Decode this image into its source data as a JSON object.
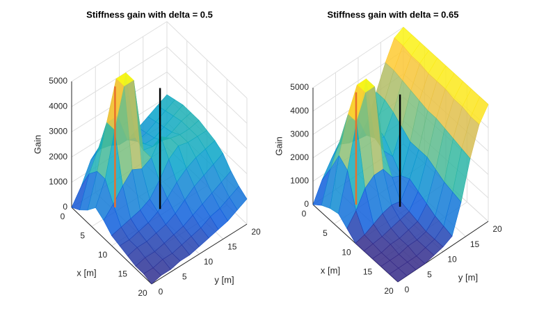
{
  "chart_data": [
    {
      "type": "surface",
      "title": "Stiffness gain with delta = 0.5",
      "xlabel": "x [m]",
      "ylabel": "y [m]",
      "zlabel": "Gain",
      "x": [
        0,
        2,
        4,
        6,
        8,
        10,
        12,
        14,
        16,
        18,
        20
      ],
      "y": [
        0,
        2,
        4,
        6,
        8,
        10,
        12,
        14,
        16,
        18,
        20
      ],
      "z": [
        [
          0,
          600,
          1400,
          1600,
          1500,
          1300,
          1300,
          1500,
          1700,
          1900,
          2100
        ],
        [
          200,
          1400,
          2200,
          3000,
          3000,
          1800,
          1500,
          1600,
          1800,
          2000,
          2200
        ],
        [
          500,
          1800,
          3500,
          5000,
          5000,
          2200,
          1700,
          1700,
          1900,
          2100,
          2300
        ],
        [
          900,
          1800,
          3500,
          5000,
          5000,
          2000,
          1900,
          1900,
          2000,
          2200,
          2300
        ],
        [
          700,
          1100,
          1600,
          2000,
          1800,
          2000,
          2600,
          2300,
          2200,
          2200,
          2300
        ],
        [
          400,
          500,
          600,
          700,
          900,
          1400,
          2000,
          2300,
          2200,
          2200,
          2200
        ],
        [
          300,
          300,
          400,
          500,
          700,
          1000,
          1400,
          1700,
          1900,
          2000,
          2100
        ],
        [
          200,
          300,
          300,
          400,
          500,
          700,
          1000,
          1300,
          1500,
          1700,
          1900
        ],
        [
          100,
          200,
          200,
          300,
          400,
          500,
          700,
          900,
          1100,
          1300,
          1500
        ],
        [
          100,
          100,
          200,
          200,
          300,
          400,
          500,
          700,
          800,
          1000,
          1200
        ],
        [
          0,
          100,
          100,
          200,
          200,
          300,
          400,
          500,
          600,
          800,
          1000
        ]
      ],
      "xlim": [
        0,
        20
      ],
      "ylim": [
        0,
        20
      ],
      "zlim": [
        0,
        5000
      ],
      "xticks": [
        0,
        5,
        10,
        15,
        20
      ],
      "yticks": [
        0,
        5,
        10,
        15,
        20
      ],
      "zticks": [
        0,
        1000,
        2000,
        3000,
        4000,
        5000
      ],
      "grid": true,
      "colormap": [
        "#352a87",
        "#0f5cdd",
        "#1481d6",
        "#06a4ca",
        "#2eb7a4",
        "#87bf77",
        "#d1bb59",
        "#fec832",
        "#f9fb0e"
      ],
      "lines": [
        {
          "color": "#e8702a",
          "x": 4.3,
          "y": 5.5,
          "z": [
            0,
            4800
          ]
        },
        {
          "color": "#000000",
          "x": 9,
          "y": 11,
          "z": [
            0,
            4800
          ]
        }
      ]
    },
    {
      "type": "surface",
      "title": "Stiffness gain with delta = 0.65",
      "xlabel": "x [m]",
      "ylabel": "y [m]",
      "zlabel": "Gain",
      "x": [
        0,
        2,
        4,
        6,
        8,
        10,
        12,
        14,
        16,
        18,
        20
      ],
      "y": [
        0,
        2,
        4,
        6,
        8,
        10,
        12,
        14,
        16,
        18,
        20
      ],
      "z": [
        [
          0,
          800,
          1400,
          1800,
          1600,
          1500,
          2000,
          3000,
          4000,
          4800,
          5000
        ],
        [
          300,
          1600,
          2500,
          3200,
          3000,
          2000,
          2200,
          3000,
          4000,
          4800,
          5000
        ],
        [
          500,
          2500,
          4000,
          5000,
          5000,
          2200,
          2000,
          2800,
          3900,
          4700,
          5000
        ],
        [
          600,
          2200,
          4000,
          5000,
          5000,
          2000,
          1500,
          2500,
          3800,
          4700,
          5000
        ],
        [
          300,
          800,
          1500,
          1800,
          1800,
          1200,
          1000,
          2200,
          3700,
          4600,
          5000
        ],
        [
          0,
          100,
          300,
          500,
          600,
          500,
          1200,
          2200,
          3600,
          4600,
          5000
        ],
        [
          0,
          50,
          100,
          200,
          300,
          400,
          1000,
          2200,
          3600,
          4600,
          5000
        ],
        [
          0,
          0,
          100,
          100,
          200,
          300,
          800,
          2000,
          3500,
          4500,
          5000
        ],
        [
          0,
          0,
          0,
          100,
          100,
          200,
          600,
          1800,
          3400,
          4500,
          5000
        ],
        [
          0,
          0,
          0,
          0,
          100,
          200,
          500,
          1700,
          3300,
          4400,
          5000
        ],
        [
          0,
          0,
          0,
          0,
          100,
          200,
          400,
          1600,
          3200,
          4400,
          5000
        ]
      ],
      "xlim": [
        0,
        20
      ],
      "ylim": [
        0,
        20
      ],
      "zlim": [
        0,
        5000
      ],
      "xticks": [
        0,
        5,
        10,
        15,
        20
      ],
      "yticks": [
        0,
        5,
        10,
        15,
        20
      ],
      "zticks": [
        0,
        1000,
        2000,
        3000,
        4000,
        5000
      ],
      "grid": true,
      "colormap": [
        "#352a87",
        "#0f5cdd",
        "#1481d6",
        "#06a4ca",
        "#2eb7a4",
        "#87bf77",
        "#d1bb59",
        "#fec832",
        "#f9fb0e"
      ],
      "lines": [
        {
          "color": "#e8702a",
          "x": 4.3,
          "y": 5.5,
          "z": [
            0,
            4800
          ]
        },
        {
          "color": "#000000",
          "x": 9,
          "y": 10.8,
          "z": [
            0,
            4800
          ]
        }
      ]
    }
  ]
}
